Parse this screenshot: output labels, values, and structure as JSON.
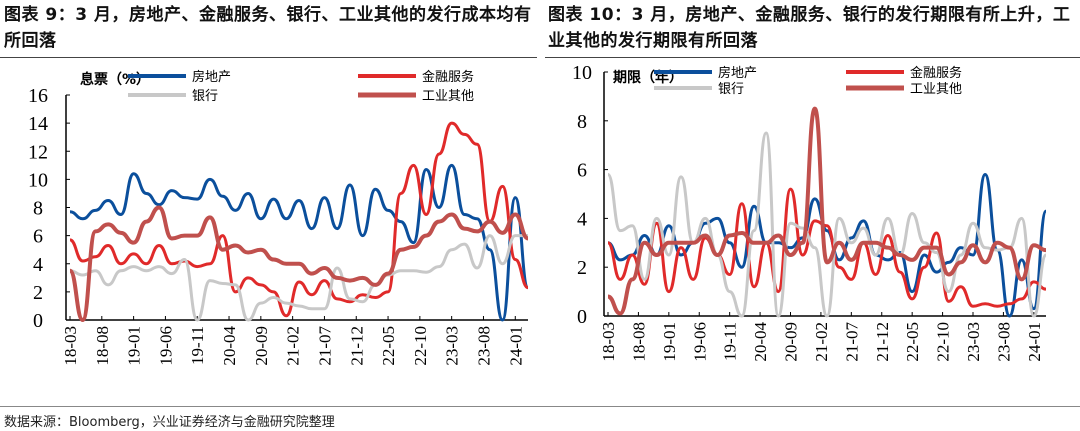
{
  "titles": {
    "left": "图表 9：3 月，房地产、金融服务、银行、工业其他的发行成本均有所回落",
    "right": "图表 10：3 月，房地产、金融服务、银行的发行期限有所上升，工业其他的发行期限有所回落"
  },
  "footer": "数据来源：Bloomberg，兴业证券经济与金融研究院整理",
  "chart_data": [
    {
      "type": "line",
      "ylabel": "息票（%）",
      "ylim": [
        0,
        16
      ],
      "yticks": [
        0,
        2,
        4,
        6,
        8,
        10,
        12,
        14,
        16
      ],
      "x": [
        "18-03",
        "18-05",
        "18-07",
        "18-09",
        "18-11",
        "19-01",
        "19-03",
        "19-05",
        "19-07",
        "19-09",
        "19-11",
        "20-01",
        "20-03",
        "20-05",
        "20-07",
        "20-09",
        "20-11",
        "21-01",
        "21-03",
        "21-05",
        "21-07",
        "21-09",
        "21-11",
        "22-01",
        "22-03",
        "22-05",
        "22-07",
        "22-09",
        "22-11",
        "23-01",
        "23-03",
        "23-05",
        "23-07",
        "23-09",
        "23-11",
        "24-01",
        "24-03"
      ],
      "xticks": [
        "18-03",
        "18-08",
        "19-01",
        "19-06",
        "19-11",
        "20-04",
        "20-09",
        "21-02",
        "21-07",
        "21-12",
        "22-05",
        "22-10",
        "23-03",
        "23-08",
        "24-01"
      ],
      "legend": "top",
      "series": [
        {
          "name": "房地产",
          "color": "#0b4f9c",
          "width": 3,
          "values": [
            7.7,
            7.2,
            7.8,
            8.5,
            7.5,
            10.4,
            9.0,
            8.2,
            9.2,
            8.7,
            8.6,
            10.0,
            8.8,
            7.8,
            9.0,
            7.2,
            8.6,
            7.2,
            8.5,
            6.5,
            8.7,
            6.5,
            9.6,
            6.0,
            9.3,
            7.8,
            7.0,
            5.5,
            10.7,
            8.0,
            11.0,
            7.5,
            7.2,
            5.0,
            0.0,
            8.7,
            2.3
          ]
        },
        {
          "name": "金融服务",
          "color": "#e02a2a",
          "width": 3,
          "values": [
            5.7,
            4.2,
            4.5,
            5.3,
            4.0,
            4.7,
            4.0,
            5.3,
            4.0,
            4.2,
            3.8,
            4.0,
            6.0,
            2.0,
            3.0,
            2.5,
            2.0,
            0.3,
            2.7,
            1.8,
            2.8,
            1.5,
            1.3,
            1.8,
            1.6,
            2.0,
            9.0,
            11.0,
            7.5,
            11.8,
            14.0,
            13.2,
            12.5,
            7.0,
            9.5,
            4.3,
            2.3
          ]
        },
        {
          "name": "银行",
          "color": "#c8c8c8",
          "width": 3,
          "values": [
            3.5,
            3.2,
            3.5,
            2.5,
            3.5,
            3.8,
            3.5,
            3.8,
            3.3,
            4.3,
            0.0,
            2.8,
            2.6,
            2.5,
            0.0,
            1.2,
            1.6,
            1.2,
            1.0,
            0.8,
            0.8,
            3.7,
            1.5,
            1.3,
            2.5,
            3.2,
            3.5,
            3.5,
            3.4,
            3.8,
            5.0,
            5.4,
            3.7,
            6.0,
            4.0,
            6.0,
            6.0
          ]
        },
        {
          "name": "工业其他",
          "color": "#c0504d",
          "width": 4,
          "values": [
            3.5,
            0.0,
            6.3,
            6.8,
            6.2,
            5.5,
            7.0,
            8.0,
            5.8,
            6.0,
            6.0,
            7.3,
            5.0,
            5.3,
            4.8,
            5.0,
            4.3,
            4.0,
            4.0,
            3.3,
            3.7,
            3.0,
            2.8,
            3.0,
            2.5,
            3.3,
            5.0,
            5.2,
            6.0,
            7.0,
            7.5,
            6.5,
            6.3,
            7.0,
            6.2,
            7.5,
            5.8
          ]
        }
      ]
    },
    {
      "type": "line",
      "ylabel": "期限（年）",
      "ylim": [
        0,
        10
      ],
      "yticks": [
        0,
        2,
        4,
        6,
        8,
        10
      ],
      "x": [
        "18-03",
        "18-05",
        "18-07",
        "18-09",
        "18-11",
        "19-01",
        "19-03",
        "19-05",
        "19-07",
        "19-09",
        "19-11",
        "20-01",
        "20-03",
        "20-05",
        "20-07",
        "20-09",
        "20-11",
        "21-01",
        "21-03",
        "21-05",
        "21-07",
        "21-09",
        "21-11",
        "22-01",
        "22-03",
        "22-05",
        "22-07",
        "22-09",
        "22-11",
        "23-01",
        "23-03",
        "23-05",
        "23-07",
        "23-09",
        "23-11",
        "24-01",
        "24-03"
      ],
      "xticks": [
        "18-03",
        "18-08",
        "19-01",
        "19-06",
        "19-11",
        "20-04",
        "20-09",
        "21-02",
        "21-07",
        "21-12",
        "22-05",
        "22-10",
        "23-03",
        "23-08",
        "24-01"
      ],
      "legend": "top",
      "series": [
        {
          "name": "房地产",
          "color": "#0b4f9c",
          "width": 3,
          "values": [
            3.0,
            2.3,
            2.5,
            3.3,
            2.5,
            3.7,
            2.5,
            3.0,
            3.8,
            4.0,
            3.0,
            2.0,
            4.5,
            3.0,
            3.0,
            2.8,
            3.2,
            4.8,
            3.5,
            2.3,
            3.2,
            3.9,
            2.5,
            2.3,
            2.6,
            1.0,
            2.5,
            1.8,
            2.2,
            2.8,
            2.5,
            5.8,
            2.7,
            0.0,
            2.3,
            0.3,
            4.3
          ]
        },
        {
          "name": "金融服务",
          "color": "#e02a2a",
          "width": 3,
          "values": [
            3.0,
            1.5,
            2.5,
            1.3,
            3.8,
            1.0,
            2.8,
            1.5,
            3.2,
            2.5,
            1.7,
            4.6,
            1.2,
            3.0,
            1.0,
            5.2,
            2.5,
            3.9,
            3.7,
            2.0,
            1.5,
            3.0,
            1.7,
            3.3,
            1.8,
            0.7,
            2.0,
            3.4,
            0.6,
            1.2,
            0.4,
            0.5,
            0.4,
            0.5,
            0.7,
            1.4,
            1.1
          ]
        },
        {
          "name": "银行",
          "color": "#c8c8c8",
          "width": 3,
          "values": [
            5.8,
            3.5,
            3.7,
            1.5,
            4.0,
            2.5,
            5.7,
            3.0,
            4.0,
            2.5,
            1.0,
            0.0,
            3.5,
            7.5,
            0.0,
            3.8,
            3.6,
            2.8,
            0.0,
            4.0,
            3.0,
            3.6,
            2.5,
            4.0,
            2.5,
            4.2,
            3.0,
            2.6,
            1.0,
            2.5,
            3.8,
            2.8,
            2.7,
            2.8,
            4.0,
            0.0,
            2.5
          ]
        },
        {
          "name": "工业其他",
          "color": "#c0504d",
          "width": 4,
          "values": [
            0.8,
            0.1,
            1.5,
            3.0,
            2.5,
            3.0,
            3.0,
            3.0,
            3.3,
            2.5,
            3.3,
            3.4,
            3.0,
            3.0,
            3.3,
            2.5,
            3.0,
            8.5,
            2.2,
            3.0,
            2.3,
            3.0,
            3.0,
            2.8,
            2.5,
            2.3,
            2.8,
            2.8,
            1.7,
            2.2,
            2.9,
            2.2,
            3.0,
            2.8,
            1.5,
            2.9,
            2.7
          ]
        }
      ]
    }
  ]
}
